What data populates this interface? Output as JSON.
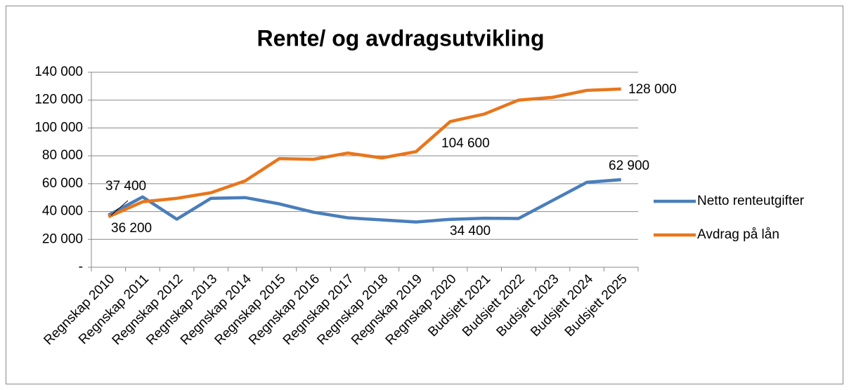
{
  "chart_data": {
    "type": "line",
    "title": "Rente/ og avdragsutvikling",
    "categories": [
      "Regnskap 2010",
      "Regnskap 2011",
      "Regnskap 2012",
      "Regnskap 2013",
      "Regnskap 2014",
      "Regnskap 2015",
      "Regnskap 2016",
      "Regnskap 2017",
      "Regnskap 2018",
      "Regnskap 2019",
      "Regnskap 2020",
      "Budsjett 2021",
      "Budsjett 2022",
      "Budsjett 2023",
      "Budsjett 2024",
      "Budsjett 2025"
    ],
    "series": [
      {
        "name": "Netto renteutgifter",
        "color": "#4a7ebb",
        "values": [
          37400,
          50500,
          34500,
          49500,
          50000,
          45500,
          39500,
          35500,
          34000,
          32500,
          34400,
          35200,
          35000,
          48000,
          61000,
          62900
        ],
        "value_labels": [
          "37 400",
          null,
          null,
          null,
          null,
          null,
          null,
          null,
          null,
          null,
          "34 400",
          null,
          null,
          null,
          null,
          "62 900"
        ]
      },
      {
        "name": "Avdrag på lån",
        "color": "#e8761c",
        "values": [
          36200,
          47000,
          49500,
          53500,
          62000,
          78000,
          77500,
          82000,
          78500,
          83000,
          104600,
          110000,
          120000,
          122000,
          127000,
          128000
        ],
        "value_labels": [
          "36 200",
          null,
          null,
          null,
          null,
          null,
          null,
          null,
          null,
          null,
          "104 600",
          null,
          null,
          null,
          null,
          "128 000"
        ]
      }
    ],
    "ylim": [
      0,
      140000
    ],
    "yticks": [
      {
        "value": 0,
        "label": "-"
      },
      {
        "value": 20000,
        "label": "20 000"
      },
      {
        "value": 40000,
        "label": "40 000"
      },
      {
        "value": 60000,
        "label": "60 000"
      },
      {
        "value": 80000,
        "label": "80 000"
      },
      {
        "value": 100000,
        "label": "100 000"
      },
      {
        "value": 120000,
        "label": "120 000"
      },
      {
        "value": 140000,
        "label": "140 000"
      }
    ],
    "grid": true,
    "legend": "right"
  }
}
